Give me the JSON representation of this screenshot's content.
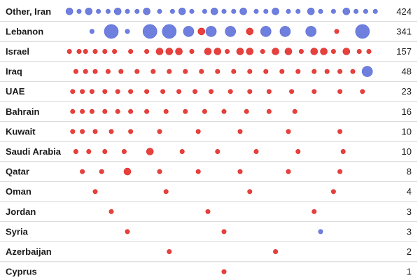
{
  "colors": {
    "red": "#e0201c",
    "blue": "#4b5fd6",
    "divider": "#d6d6d6"
  },
  "chart_data": {
    "type": "scatter",
    "title": "",
    "xlabel": "",
    "ylabel": "",
    "description_of_x": "timeline position, unlabeled",
    "xlim": [
      0,
      1
    ],
    "grid": false,
    "legend": "none",
    "rows": [
      {
        "name": "Other, Iran",
        "count": "424",
        "points": [
          {
            "x": 0.02,
            "s": 2,
            "c": "blue"
          },
          {
            "x": 0.05,
            "s": 1,
            "c": "blue"
          },
          {
            "x": 0.08,
            "s": 2,
            "c": "blue"
          },
          {
            "x": 0.11,
            "s": 1,
            "c": "blue"
          },
          {
            "x": 0.14,
            "s": 1,
            "c": "blue"
          },
          {
            "x": 0.17,
            "s": 2,
            "c": "blue"
          },
          {
            "x": 0.2,
            "s": 1,
            "c": "blue"
          },
          {
            "x": 0.23,
            "s": 1,
            "c": "blue"
          },
          {
            "x": 0.26,
            "s": 2,
            "c": "blue"
          },
          {
            "x": 0.3,
            "s": 1,
            "c": "blue"
          },
          {
            "x": 0.34,
            "s": 1,
            "c": "blue"
          },
          {
            "x": 0.37,
            "s": 2,
            "c": "blue"
          },
          {
            "x": 0.4,
            "s": 1,
            "c": "blue"
          },
          {
            "x": 0.44,
            "s": 1,
            "c": "blue"
          },
          {
            "x": 0.47,
            "s": 2,
            "c": "blue"
          },
          {
            "x": 0.5,
            "s": 1,
            "c": "blue"
          },
          {
            "x": 0.53,
            "s": 1,
            "c": "blue"
          },
          {
            "x": 0.56,
            "s": 2,
            "c": "blue"
          },
          {
            "x": 0.6,
            "s": 1,
            "c": "blue"
          },
          {
            "x": 0.63,
            "s": 1,
            "c": "blue"
          },
          {
            "x": 0.66,
            "s": 2,
            "c": "blue"
          },
          {
            "x": 0.7,
            "s": 1,
            "c": "blue"
          },
          {
            "x": 0.73,
            "s": 1,
            "c": "blue"
          },
          {
            "x": 0.77,
            "s": 2,
            "c": "blue"
          },
          {
            "x": 0.8,
            "s": 1,
            "c": "blue"
          },
          {
            "x": 0.84,
            "s": 1,
            "c": "blue"
          },
          {
            "x": 0.88,
            "s": 2,
            "c": "blue"
          },
          {
            "x": 0.91,
            "s": 1,
            "c": "blue"
          },
          {
            "x": 0.94,
            "s": 1,
            "c": "blue"
          },
          {
            "x": 0.97,
            "s": 1,
            "c": "blue"
          }
        ]
      },
      {
        "name": "Lebanon",
        "count": "341",
        "points": [
          {
            "x": 0.09,
            "s": 1,
            "c": "blue"
          },
          {
            "x": 0.15,
            "s": 4,
            "c": "blue"
          },
          {
            "x": 0.2,
            "s": 1,
            "c": "blue"
          },
          {
            "x": 0.27,
            "s": 4,
            "c": "blue"
          },
          {
            "x": 0.33,
            "s": 4,
            "c": "blue"
          },
          {
            "x": 0.39,
            "s": 3,
            "c": "blue"
          },
          {
            "x": 0.43,
            "s": 2,
            "c": "red"
          },
          {
            "x": 0.46,
            "s": 3,
            "c": "blue"
          },
          {
            "x": 0.52,
            "s": 3,
            "c": "blue"
          },
          {
            "x": 0.58,
            "s": 2,
            "c": "red"
          },
          {
            "x": 0.63,
            "s": 3,
            "c": "blue"
          },
          {
            "x": 0.69,
            "s": 3,
            "c": "blue"
          },
          {
            "x": 0.77,
            "s": 3,
            "c": "blue"
          },
          {
            "x": 0.85,
            "s": 1,
            "c": "red"
          },
          {
            "x": 0.93,
            "s": 4,
            "c": "blue"
          }
        ]
      },
      {
        "name": "Israel",
        "count": "157",
        "points": [
          {
            "x": 0.02,
            "s": 1,
            "c": "red"
          },
          {
            "x": 0.05,
            "s": 1,
            "c": "red"
          },
          {
            "x": 0.07,
            "s": 1,
            "c": "red"
          },
          {
            "x": 0.1,
            "s": 1,
            "c": "red"
          },
          {
            "x": 0.13,
            "s": 1,
            "c": "red"
          },
          {
            "x": 0.16,
            "s": 1,
            "c": "red"
          },
          {
            "x": 0.21,
            "s": 1,
            "c": "red"
          },
          {
            "x": 0.26,
            "s": 1,
            "c": "red"
          },
          {
            "x": 0.3,
            "s": 2,
            "c": "red"
          },
          {
            "x": 0.33,
            "s": 2,
            "c": "red"
          },
          {
            "x": 0.36,
            "s": 2,
            "c": "red"
          },
          {
            "x": 0.4,
            "s": 1,
            "c": "red"
          },
          {
            "x": 0.45,
            "s": 2,
            "c": "red"
          },
          {
            "x": 0.48,
            "s": 2,
            "c": "red"
          },
          {
            "x": 0.51,
            "s": 1,
            "c": "red"
          },
          {
            "x": 0.55,
            "s": 2,
            "c": "red"
          },
          {
            "x": 0.58,
            "s": 2,
            "c": "red"
          },
          {
            "x": 0.62,
            "s": 1,
            "c": "red"
          },
          {
            "x": 0.66,
            "s": 2,
            "c": "red"
          },
          {
            "x": 0.7,
            "s": 2,
            "c": "red"
          },
          {
            "x": 0.74,
            "s": 1,
            "c": "red"
          },
          {
            "x": 0.78,
            "s": 2,
            "c": "red"
          },
          {
            "x": 0.81,
            "s": 2,
            "c": "red"
          },
          {
            "x": 0.84,
            "s": 1,
            "c": "red"
          },
          {
            "x": 0.88,
            "s": 2,
            "c": "red"
          },
          {
            "x": 0.92,
            "s": 1,
            "c": "red"
          },
          {
            "x": 0.95,
            "s": 1,
            "c": "red"
          }
        ]
      },
      {
        "name": "Iraq",
        "count": "48",
        "points": [
          {
            "x": 0.04,
            "s": 1,
            "c": "red"
          },
          {
            "x": 0.07,
            "s": 1,
            "c": "red"
          },
          {
            "x": 0.1,
            "s": 1,
            "c": "red"
          },
          {
            "x": 0.14,
            "s": 1,
            "c": "red"
          },
          {
            "x": 0.18,
            "s": 1,
            "c": "red"
          },
          {
            "x": 0.23,
            "s": 1,
            "c": "red"
          },
          {
            "x": 0.28,
            "s": 1,
            "c": "red"
          },
          {
            "x": 0.33,
            "s": 1,
            "c": "red"
          },
          {
            "x": 0.38,
            "s": 1,
            "c": "red"
          },
          {
            "x": 0.43,
            "s": 1,
            "c": "red"
          },
          {
            "x": 0.48,
            "s": 1,
            "c": "red"
          },
          {
            "x": 0.53,
            "s": 1,
            "c": "red"
          },
          {
            "x": 0.58,
            "s": 1,
            "c": "red"
          },
          {
            "x": 0.63,
            "s": 1,
            "c": "red"
          },
          {
            "x": 0.68,
            "s": 1,
            "c": "red"
          },
          {
            "x": 0.73,
            "s": 1,
            "c": "red"
          },
          {
            "x": 0.78,
            "s": 1,
            "c": "red"
          },
          {
            "x": 0.82,
            "s": 1,
            "c": "red"
          },
          {
            "x": 0.86,
            "s": 1,
            "c": "red"
          },
          {
            "x": 0.9,
            "s": 1,
            "c": "red"
          },
          {
            "x": 0.945,
            "s": 3,
            "c": "blue"
          }
        ]
      },
      {
        "name": "UAE",
        "count": "23",
        "points": [
          {
            "x": 0.03,
            "s": 1,
            "c": "red"
          },
          {
            "x": 0.06,
            "s": 1,
            "c": "red"
          },
          {
            "x": 0.09,
            "s": 1,
            "c": "red"
          },
          {
            "x": 0.13,
            "s": 1,
            "c": "red"
          },
          {
            "x": 0.17,
            "s": 1,
            "c": "red"
          },
          {
            "x": 0.21,
            "s": 1,
            "c": "red"
          },
          {
            "x": 0.26,
            "s": 1,
            "c": "red"
          },
          {
            "x": 0.31,
            "s": 1,
            "c": "red"
          },
          {
            "x": 0.36,
            "s": 1,
            "c": "red"
          },
          {
            "x": 0.41,
            "s": 1,
            "c": "red"
          },
          {
            "x": 0.46,
            "s": 1,
            "c": "red"
          },
          {
            "x": 0.52,
            "s": 1,
            "c": "red"
          },
          {
            "x": 0.58,
            "s": 1,
            "c": "red"
          },
          {
            "x": 0.64,
            "s": 1,
            "c": "red"
          },
          {
            "x": 0.71,
            "s": 1,
            "c": "red"
          },
          {
            "x": 0.78,
            "s": 1,
            "c": "red"
          },
          {
            "x": 0.86,
            "s": 1,
            "c": "red"
          },
          {
            "x": 0.93,
            "s": 1,
            "c": "red"
          }
        ]
      },
      {
        "name": "Bahrain",
        "count": "16",
        "points": [
          {
            "x": 0.03,
            "s": 1,
            "c": "red"
          },
          {
            "x": 0.06,
            "s": 1,
            "c": "red"
          },
          {
            "x": 0.09,
            "s": 1,
            "c": "red"
          },
          {
            "x": 0.13,
            "s": 1,
            "c": "red"
          },
          {
            "x": 0.17,
            "s": 1,
            "c": "red"
          },
          {
            "x": 0.21,
            "s": 1,
            "c": "red"
          },
          {
            "x": 0.26,
            "s": 1,
            "c": "red"
          },
          {
            "x": 0.32,
            "s": 1,
            "c": "red"
          },
          {
            "x": 0.38,
            "s": 1,
            "c": "red"
          },
          {
            "x": 0.44,
            "s": 1,
            "c": "red"
          },
          {
            "x": 0.5,
            "s": 1,
            "c": "red"
          },
          {
            "x": 0.57,
            "s": 1,
            "c": "red"
          },
          {
            "x": 0.64,
            "s": 1,
            "c": "red"
          },
          {
            "x": 0.72,
            "s": 1,
            "c": "red"
          }
        ]
      },
      {
        "name": "Kuwait",
        "count": "10",
        "points": [
          {
            "x": 0.03,
            "s": 1,
            "c": "red"
          },
          {
            "x": 0.06,
            "s": 1,
            "c": "red"
          },
          {
            "x": 0.1,
            "s": 1,
            "c": "red"
          },
          {
            "x": 0.15,
            "s": 1,
            "c": "red"
          },
          {
            "x": 0.21,
            "s": 1,
            "c": "red"
          },
          {
            "x": 0.3,
            "s": 1,
            "c": "red"
          },
          {
            "x": 0.42,
            "s": 1,
            "c": "red"
          },
          {
            "x": 0.55,
            "s": 1,
            "c": "red"
          },
          {
            "x": 0.7,
            "s": 1,
            "c": "red"
          },
          {
            "x": 0.86,
            "s": 1,
            "c": "red"
          }
        ]
      },
      {
        "name": "Saudi Arabia",
        "count": "10",
        "points": [
          {
            "x": 0.04,
            "s": 1,
            "c": "red"
          },
          {
            "x": 0.08,
            "s": 1,
            "c": "red"
          },
          {
            "x": 0.13,
            "s": 1,
            "c": "red"
          },
          {
            "x": 0.19,
            "s": 1,
            "c": "red"
          },
          {
            "x": 0.27,
            "s": 2,
            "c": "red"
          },
          {
            "x": 0.37,
            "s": 1,
            "c": "red"
          },
          {
            "x": 0.48,
            "s": 1,
            "c": "red"
          },
          {
            "x": 0.6,
            "s": 1,
            "c": "red"
          },
          {
            "x": 0.73,
            "s": 1,
            "c": "red"
          },
          {
            "x": 0.87,
            "s": 1,
            "c": "red"
          }
        ]
      },
      {
        "name": "Qatar",
        "count": "8",
        "points": [
          {
            "x": 0.06,
            "s": 1,
            "c": "red"
          },
          {
            "x": 0.12,
            "s": 1,
            "c": "red"
          },
          {
            "x": 0.2,
            "s": 2,
            "c": "red"
          },
          {
            "x": 0.3,
            "s": 1,
            "c": "red"
          },
          {
            "x": 0.42,
            "s": 1,
            "c": "red"
          },
          {
            "x": 0.55,
            "s": 1,
            "c": "red"
          },
          {
            "x": 0.7,
            "s": 1,
            "c": "red"
          },
          {
            "x": 0.86,
            "s": 1,
            "c": "red"
          }
        ]
      },
      {
        "name": "Oman",
        "count": "4",
        "points": [
          {
            "x": 0.1,
            "s": 1,
            "c": "red"
          },
          {
            "x": 0.32,
            "s": 1,
            "c": "red"
          },
          {
            "x": 0.58,
            "s": 1,
            "c": "red"
          },
          {
            "x": 0.84,
            "s": 1,
            "c": "red"
          }
        ]
      },
      {
        "name": "Jordan",
        "count": "3",
        "points": [
          {
            "x": 0.15,
            "s": 1,
            "c": "red"
          },
          {
            "x": 0.45,
            "s": 1,
            "c": "red"
          },
          {
            "x": 0.78,
            "s": 1,
            "c": "red"
          }
        ]
      },
      {
        "name": "Syria",
        "count": "3",
        "points": [
          {
            "x": 0.2,
            "s": 1,
            "c": "red"
          },
          {
            "x": 0.5,
            "s": 1,
            "c": "red"
          },
          {
            "x": 0.8,
            "s": 1,
            "c": "blue"
          }
        ]
      },
      {
        "name": "Azerbaijan",
        "count": "2",
        "points": [
          {
            "x": 0.33,
            "s": 1,
            "c": "red"
          },
          {
            "x": 0.66,
            "s": 1,
            "c": "red"
          }
        ]
      },
      {
        "name": "Cyprus",
        "count": "1",
        "points": [
          {
            "x": 0.5,
            "s": 1,
            "c": "red"
          }
        ]
      }
    ]
  }
}
